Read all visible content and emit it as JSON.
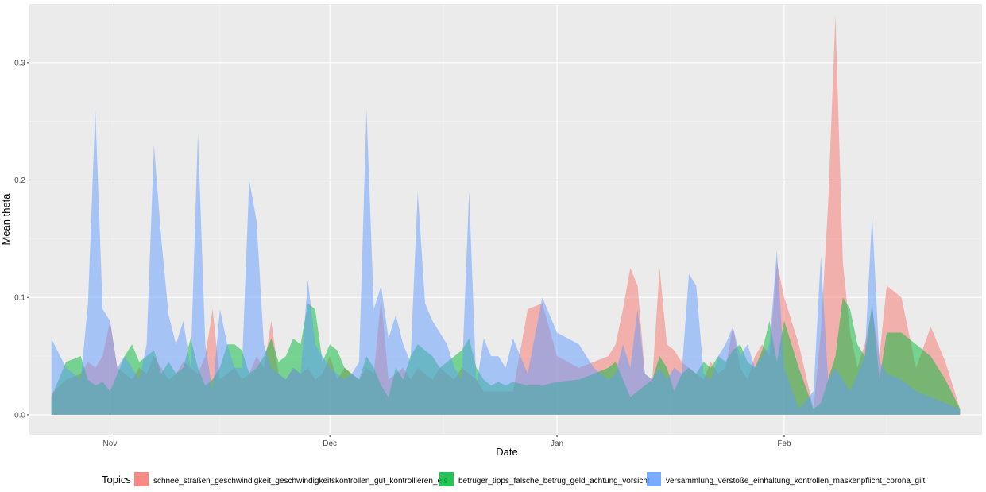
{
  "chart_data": {
    "type": "area",
    "title": "",
    "xlabel": "Date",
    "ylabel": "Mean theta",
    "x_tick_labels": [
      "Nov",
      "Dec",
      "Jan",
      "Feb"
    ],
    "x_tick_dates": [
      "2020-11-01",
      "2020-12-01",
      "2021-01-01",
      "2021-02-01"
    ],
    "x_range": [
      "2020-10-21",
      "2021-02-28"
    ],
    "y_tick_labels": [
      "0.0",
      "0.1",
      "0.2",
      "0.3"
    ],
    "y_ticks": [
      0.0,
      0.1,
      0.2,
      0.3
    ],
    "ylim": [
      -0.017,
      0.35
    ],
    "grid": true,
    "legend_position": "bottom",
    "legend_title": "Topics",
    "x": [
      "2020-10-24",
      "2020-10-26",
      "2020-10-28",
      "2020-10-29",
      "2020-10-30",
      "2020-10-31",
      "2020-11-01",
      "2020-11-02",
      "2020-11-03",
      "2020-11-04",
      "2020-11-05",
      "2020-11-06",
      "2020-11-07",
      "2020-11-08",
      "2020-11-09",
      "2020-11-10",
      "2020-11-11",
      "2020-11-12",
      "2020-11-13",
      "2020-11-14",
      "2020-11-15",
      "2020-11-16",
      "2020-11-17",
      "2020-11-18",
      "2020-11-19",
      "2020-11-20",
      "2020-11-21",
      "2020-11-22",
      "2020-11-23",
      "2020-11-24",
      "2020-11-25",
      "2020-11-26",
      "2020-11-27",
      "2020-11-28",
      "2020-11-29",
      "2020-11-30",
      "2020-12-01",
      "2020-12-02",
      "2020-12-03",
      "2020-12-04",
      "2020-12-05",
      "2020-12-06",
      "2020-12-07",
      "2020-12-08",
      "2020-12-09",
      "2020-12-10",
      "2020-12-11",
      "2020-12-12",
      "2020-12-13",
      "2020-12-14",
      "2020-12-15",
      "2020-12-16",
      "2020-12-17",
      "2020-12-18",
      "2020-12-19",
      "2020-12-20",
      "2020-12-21",
      "2020-12-22",
      "2020-12-23",
      "2020-12-24",
      "2020-12-25",
      "2020-12-26",
      "2020-12-28",
      "2020-12-30",
      "2021-01-01",
      "2021-01-04",
      "2021-01-06",
      "2021-01-08",
      "2021-01-09",
      "2021-01-10",
      "2021-01-11",
      "2021-01-12",
      "2021-01-13",
      "2021-01-14",
      "2021-01-15",
      "2021-01-16",
      "2021-01-17",
      "2021-01-18",
      "2021-01-19",
      "2021-01-20",
      "2021-01-21",
      "2021-01-22",
      "2021-01-23",
      "2021-01-24",
      "2021-01-25",
      "2021-01-26",
      "2021-01-27",
      "2021-01-28",
      "2021-01-29",
      "2021-01-30",
      "2021-01-31",
      "2021-02-01",
      "2021-02-03",
      "2021-02-05",
      "2021-02-06",
      "2021-02-07",
      "2021-02-08",
      "2021-02-09",
      "2021-02-10",
      "2021-02-11",
      "2021-02-12",
      "2021-02-13",
      "2021-02-14",
      "2021-02-15",
      "2021-02-17",
      "2021-02-19",
      "2021-02-21",
      "2021-02-23",
      "2021-02-25"
    ],
    "series": [
      {
        "name": "schnee_straßen_geschwindigkeit_geschwindigkeitskontrollen_gut_kontrollieren_eis",
        "color": "#F8766D",
        "values": [
          0.018,
          0.03,
          0.035,
          0.045,
          0.04,
          0.05,
          0.08,
          0.04,
          0.035,
          0.03,
          0.04,
          0.035,
          0.05,
          0.04,
          0.03,
          0.035,
          0.045,
          0.04,
          0.035,
          0.05,
          0.09,
          0.03,
          0.035,
          0.04,
          0.03,
          0.035,
          0.05,
          0.04,
          0.08,
          0.035,
          0.03,
          0.04,
          0.035,
          0.04,
          0.03,
          0.035,
          0.05,
          0.03,
          0.04,
          0.035,
          0.03,
          0.04,
          0.035,
          0.1,
          0.03,
          0.035,
          0.04,
          0.03,
          0.04,
          0.035,
          0.03,
          0.04,
          0.035,
          0.03,
          0.04,
          0.035,
          0.03,
          0.02,
          0.02,
          0.02,
          0.02,
          0.02,
          0.09,
          0.095,
          0.05,
          0.04,
          0.045,
          0.05,
          0.06,
          0.09,
          0.125,
          0.11,
          0.035,
          0.03,
          0.125,
          0.06,
          0.055,
          0.045,
          0.04,
          0.035,
          0.03,
          0.045,
          0.035,
          0.04,
          0.075,
          0.04,
          0.03,
          0.05,
          0.06,
          0.05,
          0.13,
          0.1,
          0.06,
          0.005,
          0.07,
          0.18,
          0.34,
          0.13,
          0.07,
          0.04,
          0.06,
          0.09,
          0.05,
          0.11,
          0.1,
          0.04,
          0.075,
          0.045,
          0.005
        ]
      },
      {
        "name": "betrüger_tipps_falsche_betrug_geld_achtung_vorsicht",
        "color": "#00BA38",
        "values": [
          0.015,
          0.045,
          0.05,
          0.03,
          0.025,
          0.028,
          0.02,
          0.035,
          0.05,
          0.06,
          0.045,
          0.05,
          0.055,
          0.035,
          0.045,
          0.035,
          0.04,
          0.065,
          0.04,
          0.025,
          0.03,
          0.04,
          0.06,
          0.06,
          0.055,
          0.035,
          0.04,
          0.05,
          0.065,
          0.045,
          0.05,
          0.065,
          0.06,
          0.095,
          0.09,
          0.045,
          0.06,
          0.055,
          0.04,
          0.035,
          0.03,
          0.05,
          0.04,
          0.025,
          0.015,
          0.04,
          0.03,
          0.05,
          0.06,
          0.055,
          0.05,
          0.04,
          0.045,
          0.05,
          0.055,
          0.065,
          0.04,
          0.03,
          0.025,
          0.028,
          0.025,
          0.028,
          0.025,
          0.025,
          0.028,
          0.03,
          0.035,
          0.04,
          0.045,
          0.03,
          0.015,
          0.02,
          0.025,
          0.03,
          0.05,
          0.04,
          0.02,
          0.035,
          0.04,
          0.035,
          0.045,
          0.04,
          0.05,
          0.045,
          0.055,
          0.06,
          0.045,
          0.04,
          0.055,
          0.08,
          0.045,
          0.08,
          0.04,
          0.005,
          0.01,
          0.03,
          0.05,
          0.1,
          0.09,
          0.06,
          0.05,
          0.095,
          0.03,
          0.07,
          0.07,
          0.06,
          0.05,
          0.03,
          0.005
        ]
      },
      {
        "name": "versammlung_verstöße_einhaltung_kontrollen_maskenpflicht_corona_gilt",
        "color": "#619CFF",
        "values": [
          0.065,
          0.04,
          0.03,
          0.095,
          0.26,
          0.09,
          0.08,
          0.04,
          0.05,
          0.04,
          0.03,
          0.06,
          0.23,
          0.15,
          0.085,
          0.06,
          0.08,
          0.04,
          0.24,
          0.06,
          0.02,
          0.09,
          0.06,
          0.04,
          0.04,
          0.2,
          0.165,
          0.06,
          0.04,
          0.035,
          0.03,
          0.04,
          0.035,
          0.115,
          0.06,
          0.05,
          0.04,
          0.035,
          0.03,
          0.035,
          0.045,
          0.26,
          0.09,
          0.11,
          0.065,
          0.085,
          0.06,
          0.045,
          0.19,
          0.095,
          0.08,
          0.07,
          0.06,
          0.04,
          0.03,
          0.19,
          0.025,
          0.065,
          0.05,
          0.05,
          0.04,
          0.065,
          0.035,
          0.1,
          0.07,
          0.06,
          0.04,
          0.03,
          0.035,
          0.06,
          0.04,
          0.09,
          0.035,
          0.03,
          0.04,
          0.03,
          0.04,
          0.035,
          0.12,
          0.11,
          0.035,
          0.03,
          0.05,
          0.06,
          0.075,
          0.05,
          0.06,
          0.04,
          0.05,
          0.06,
          0.14,
          0.04,
          0.005,
          0.02,
          0.135,
          0.03,
          0.04,
          0.03,
          0.02,
          0.035,
          0.05,
          0.17,
          0.045,
          0.035,
          0.03,
          0.02,
          0.015,
          0.01,
          0.005
        ]
      }
    ]
  }
}
